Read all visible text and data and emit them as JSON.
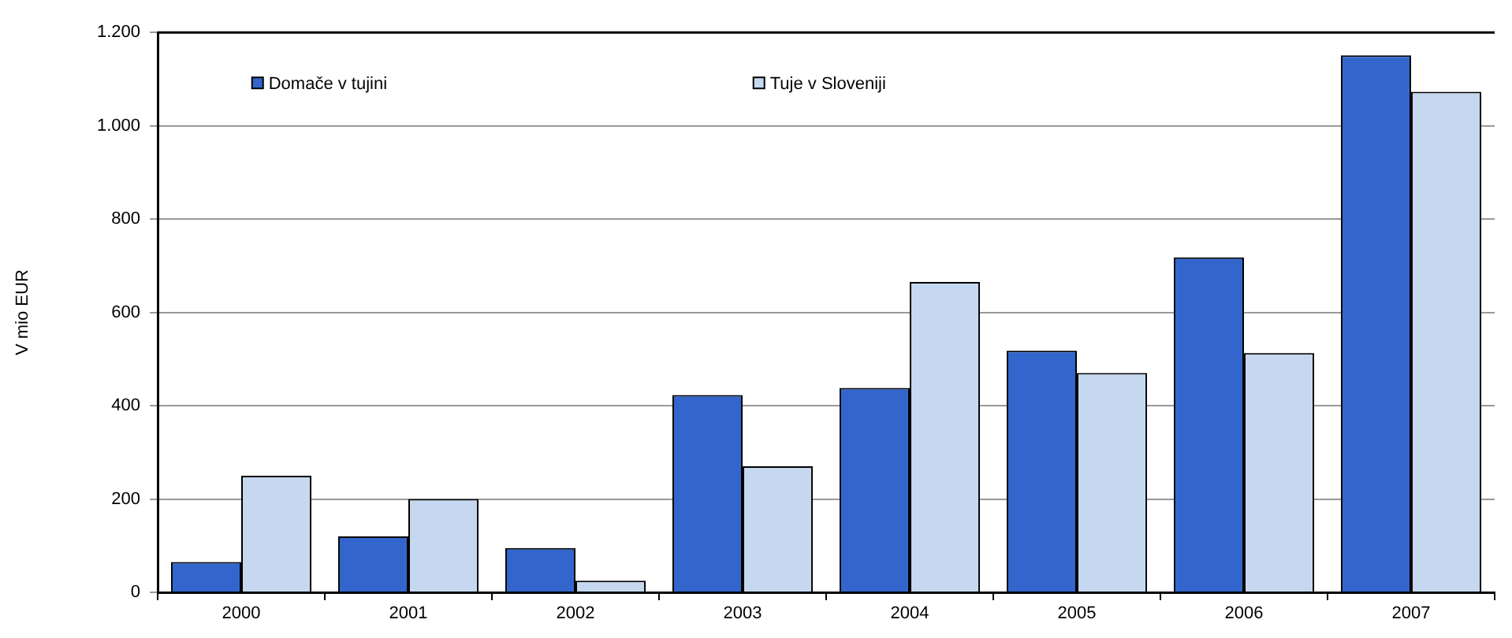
{
  "chart_data": {
    "type": "bar",
    "ylabel": "V mio EUR",
    "categories": [
      "2000",
      "2001",
      "2002",
      "2003",
      "2004",
      "2005",
      "2006",
      "2007"
    ],
    "series": [
      {
        "name": "Domače v tujini",
        "color": "#3366cc",
        "values": [
          65,
          120,
          95,
          423,
          438,
          518,
          718,
          1151
        ]
      },
      {
        "name": "Tuje v Sloveniji",
        "color": "#c6d8ef",
        "values": [
          250,
          200,
          25,
          270,
          665,
          470,
          513,
          1073
        ]
      }
    ],
    "ylim": [
      0,
      1200
    ],
    "yticks": [
      0,
      200,
      400,
      600,
      800,
      {
        "value": 1000,
        "label": "1.000"
      },
      {
        "value": 1200,
        "label": "1.200"
      }
    ],
    "grid": "y",
    "legend": "top"
  }
}
